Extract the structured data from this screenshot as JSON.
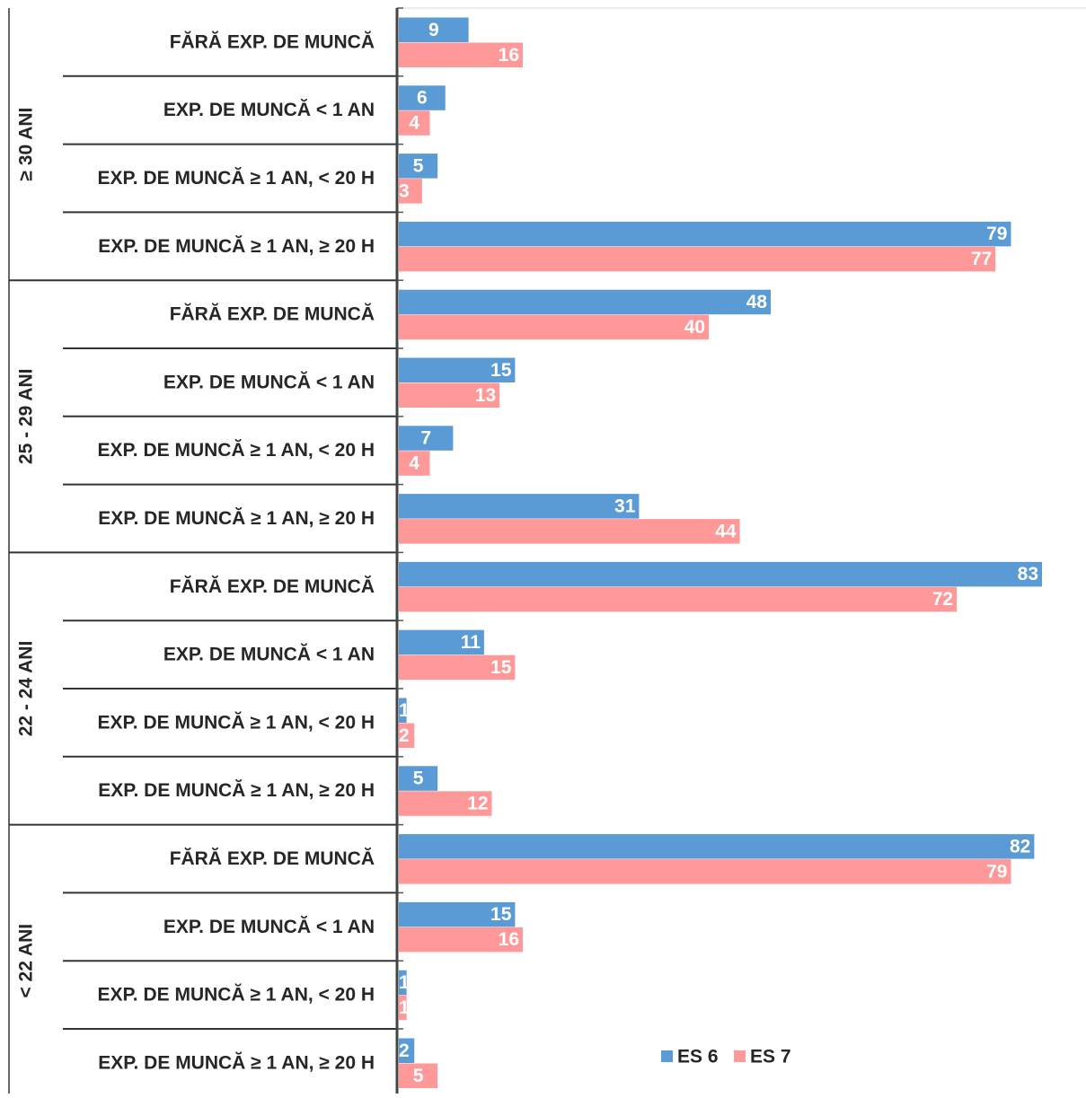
{
  "chart_data": {
    "type": "bar",
    "orientation": "horizontal",
    "grid": false,
    "legend_position": "bottom-right",
    "groups": [
      {
        "label": "≥ 30 ANI",
        "categories": [
          "FĂRĂ EXP. DE MUNCĂ",
          "EXP. DE MUNCĂ < 1 AN",
          "EXP. DE MUNCĂ ≥ 1 AN, < 20 H",
          "EXP. DE MUNCĂ ≥ 1 AN, ≥ 20 H"
        ]
      },
      {
        "label": "25 - 29 ANI",
        "categories": [
          "FĂRĂ EXP. DE MUNCĂ",
          "EXP. DE MUNCĂ < 1 AN",
          "EXP. DE MUNCĂ ≥ 1 AN, < 20 H",
          "EXP. DE MUNCĂ ≥ 1 AN, ≥ 20 H"
        ]
      },
      {
        "label": "22 - 24 ANI",
        "categories": [
          "FĂRĂ EXP. DE MUNCĂ",
          "EXP. DE MUNCĂ < 1 AN",
          "EXP. DE MUNCĂ ≥ 1 AN, < 20 H",
          "EXP. DE MUNCĂ ≥ 1 AN, ≥ 20 H"
        ]
      },
      {
        "label": "< 22 ANI",
        "categories": [
          "FĂRĂ EXP. DE MUNCĂ",
          "EXP. DE MUNCĂ < 1 AN",
          "EXP. DE MUNCĂ ≥ 1 AN, < 20 H",
          "EXP. DE MUNCĂ ≥ 1 AN, ≥ 20 H"
        ]
      }
    ],
    "series": [
      {
        "name": "ES 6",
        "color": "#5b9bd5",
        "values": [
          9,
          6,
          5,
          79,
          48,
          15,
          7,
          31,
          83,
          11,
          1,
          5,
          82,
          15,
          1,
          2
        ]
      },
      {
        "name": "ES 7",
        "color": "#ff9999",
        "values": [
          16,
          4,
          3,
          77,
          40,
          13,
          4,
          44,
          72,
          15,
          2,
          12,
          79,
          16,
          1,
          5
        ]
      }
    ],
    "xlim": [
      0,
      83
    ]
  }
}
